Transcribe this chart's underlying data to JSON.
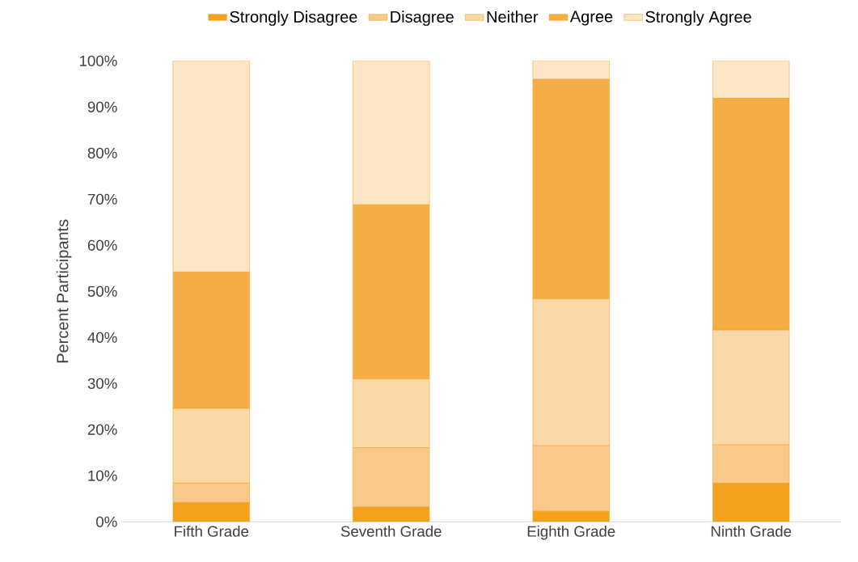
{
  "chart_data": {
    "type": "bar",
    "stacked": true,
    "ylabel": "Percent Participants",
    "categories": [
      "Fifth Grade",
      "Seventh Grade",
      "Eighth Grade",
      "Ninth Grade"
    ],
    "series": [
      {
        "name": "Strongly Disagree",
        "color": "#f4a11e",
        "values": [
          4.2,
          3.2,
          2.3,
          8.4
        ]
      },
      {
        "name": "Disagree",
        "color": "#f8c98a",
        "values": [
          4.2,
          12.9,
          14.2,
          8.3
        ]
      },
      {
        "name": "Neither",
        "color": "#fad8a8",
        "values": [
          16.2,
          14.9,
          31.9,
          24.9
        ]
      },
      {
        "name": "Agree",
        "color": "#f5ae45",
        "values": [
          29.6,
          37.8,
          47.6,
          50.3
        ]
      },
      {
        "name": "Strongly Agree",
        "color": "#fce6c6",
        "values": [
          45.8,
          31.2,
          4.0,
          8.1
        ]
      }
    ],
    "ylim": [
      0,
      100
    ],
    "yticks": [
      {
        "value": 0,
        "label": "0%"
      },
      {
        "value": 10,
        "label": "10%"
      },
      {
        "value": 20,
        "label": "20%"
      },
      {
        "value": 30,
        "label": "30%"
      },
      {
        "value": 40,
        "label": "40%"
      },
      {
        "value": 50,
        "label": "50%"
      },
      {
        "value": 60,
        "label": "60%"
      },
      {
        "value": 70,
        "label": "70%"
      },
      {
        "value": 80,
        "label": "80%"
      },
      {
        "value": 90,
        "label": "90%"
      },
      {
        "value": 100,
        "label": "100%"
      }
    ],
    "grid": false,
    "legend": "top"
  }
}
